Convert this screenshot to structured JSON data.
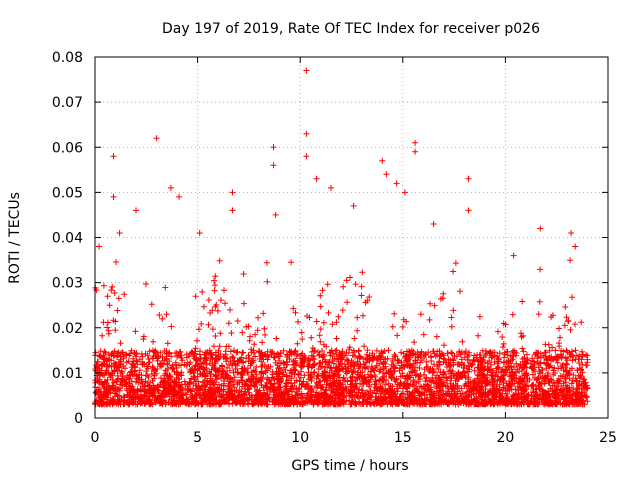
{
  "chart_data": {
    "type": "scatter",
    "title": "Day 197 of 2019, Rate Of TEC Index for receiver p026",
    "xlabel": "GPS time / hours",
    "ylabel": "ROTI / TECUs",
    "xlim": [
      0,
      25
    ],
    "ylim": [
      0,
      0.08
    ],
    "xticks": [
      0,
      5,
      10,
      15,
      20,
      25
    ],
    "xtick_labels": [
      "0",
      "5",
      "10",
      "15",
      "20",
      "25"
    ],
    "yticks": [
      0,
      0.01,
      0.02,
      0.03,
      0.04,
      0.05,
      0.06,
      0.07,
      0.08
    ],
    "ytick_labels": [
      "0",
      "0.01",
      "0.02",
      "0.03",
      "0.04",
      "0.05",
      "0.06",
      "0.07",
      "0.08"
    ],
    "grid": true,
    "series": [
      {
        "name": "ROTI",
        "marker": "+",
        "color": "#ff0000",
        "description": "Dense cloud of roughly 8000 ROTI samples between 0 and 24 h. Baseline mostly 0.003 to 0.015 TECU/s; spikes listed as outliers.",
        "data_range": {
          "x": [
            0,
            24
          ],
          "y": [
            0.002,
            0.077
          ]
        },
        "outliers": [
          [
            0.2,
            0.038
          ],
          [
            0.9,
            0.058
          ],
          [
            0.9,
            0.049
          ],
          [
            1.2,
            0.041
          ],
          [
            2.0,
            0.046
          ],
          [
            3.0,
            0.062
          ],
          [
            3.7,
            0.051
          ],
          [
            4.1,
            0.049
          ],
          [
            5.1,
            0.041
          ],
          [
            6.7,
            0.05
          ],
          [
            6.7,
            0.046
          ],
          [
            8.7,
            0.06
          ],
          [
            8.7,
            0.056
          ],
          [
            8.8,
            0.045
          ],
          [
            10.3,
            0.077
          ],
          [
            10.3,
            0.063
          ],
          [
            10.3,
            0.058
          ],
          [
            10.8,
            0.053
          ],
          [
            11.5,
            0.051
          ],
          [
            12.6,
            0.047
          ],
          [
            14.0,
            0.057
          ],
          [
            14.2,
            0.054
          ],
          [
            14.7,
            0.052
          ],
          [
            15.1,
            0.05
          ],
          [
            15.6,
            0.061
          ],
          [
            15.6,
            0.059
          ],
          [
            16.5,
            0.043
          ],
          [
            18.2,
            0.053
          ],
          [
            18.2,
            0.046
          ],
          [
            20.4,
            0.036
          ],
          [
            21.7,
            0.042
          ],
          [
            23.2,
            0.041
          ],
          [
            23.4,
            0.038
          ]
        ]
      }
    ]
  }
}
